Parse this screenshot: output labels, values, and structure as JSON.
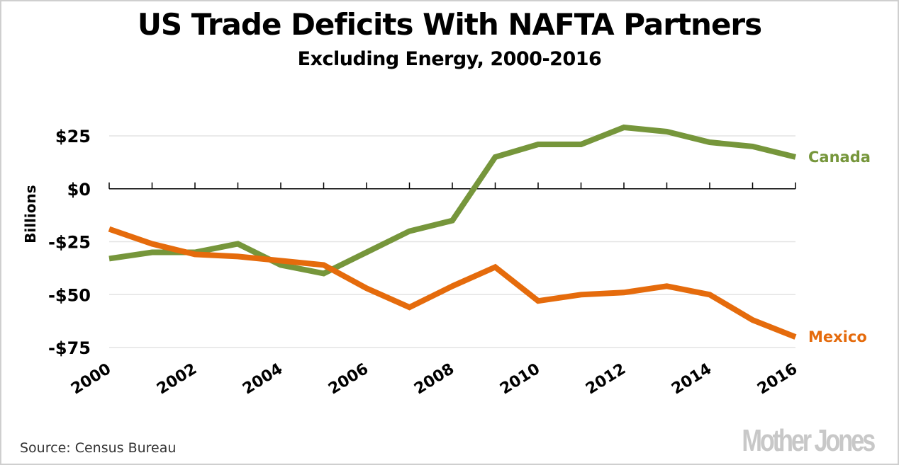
{
  "chart_data": {
    "type": "line",
    "title": "US Trade Deficits With NAFTA Partners",
    "subtitle": "Excluding Energy, 2000-2016",
    "xlabel": "",
    "ylabel": "Billions",
    "x": [
      2000,
      2001,
      2002,
      2003,
      2004,
      2005,
      2006,
      2007,
      2008,
      2009,
      2010,
      2011,
      2012,
      2013,
      2014,
      2015,
      2016
    ],
    "x_tick_labels": [
      "2000",
      "2002",
      "2004",
      "2006",
      "2008",
      "2010",
      "2012",
      "2014",
      "2016"
    ],
    "y_ticks": [
      25,
      0,
      -25,
      -50,
      -75
    ],
    "y_tick_labels": [
      "$25",
      "$0",
      "-$25",
      "-$50",
      "-$75"
    ],
    "ylim": [
      -75,
      25
    ],
    "xlim": [
      2000,
      2016
    ],
    "grid": true,
    "series": [
      {
        "name": "Canada",
        "color": "#76963b",
        "values": [
          -33,
          -30,
          -30,
          -26,
          -36,
          -40,
          -30,
          -20,
          -15,
          15,
          21,
          21,
          29,
          27,
          22,
          20,
          15
        ]
      },
      {
        "name": "Mexico",
        "color": "#e56b0c",
        "values": [
          -19,
          -26,
          -31,
          -32,
          -34,
          -36,
          -47,
          -56,
          -46,
          -37,
          -53,
          -50,
          -49,
          -46,
          -50,
          -62,
          -70
        ]
      }
    ],
    "legend": "direct-labels-right",
    "source": "Source: Census Bureau"
  },
  "footer": {
    "source": "Source: Census Bureau",
    "brand": "Mother Jones"
  }
}
